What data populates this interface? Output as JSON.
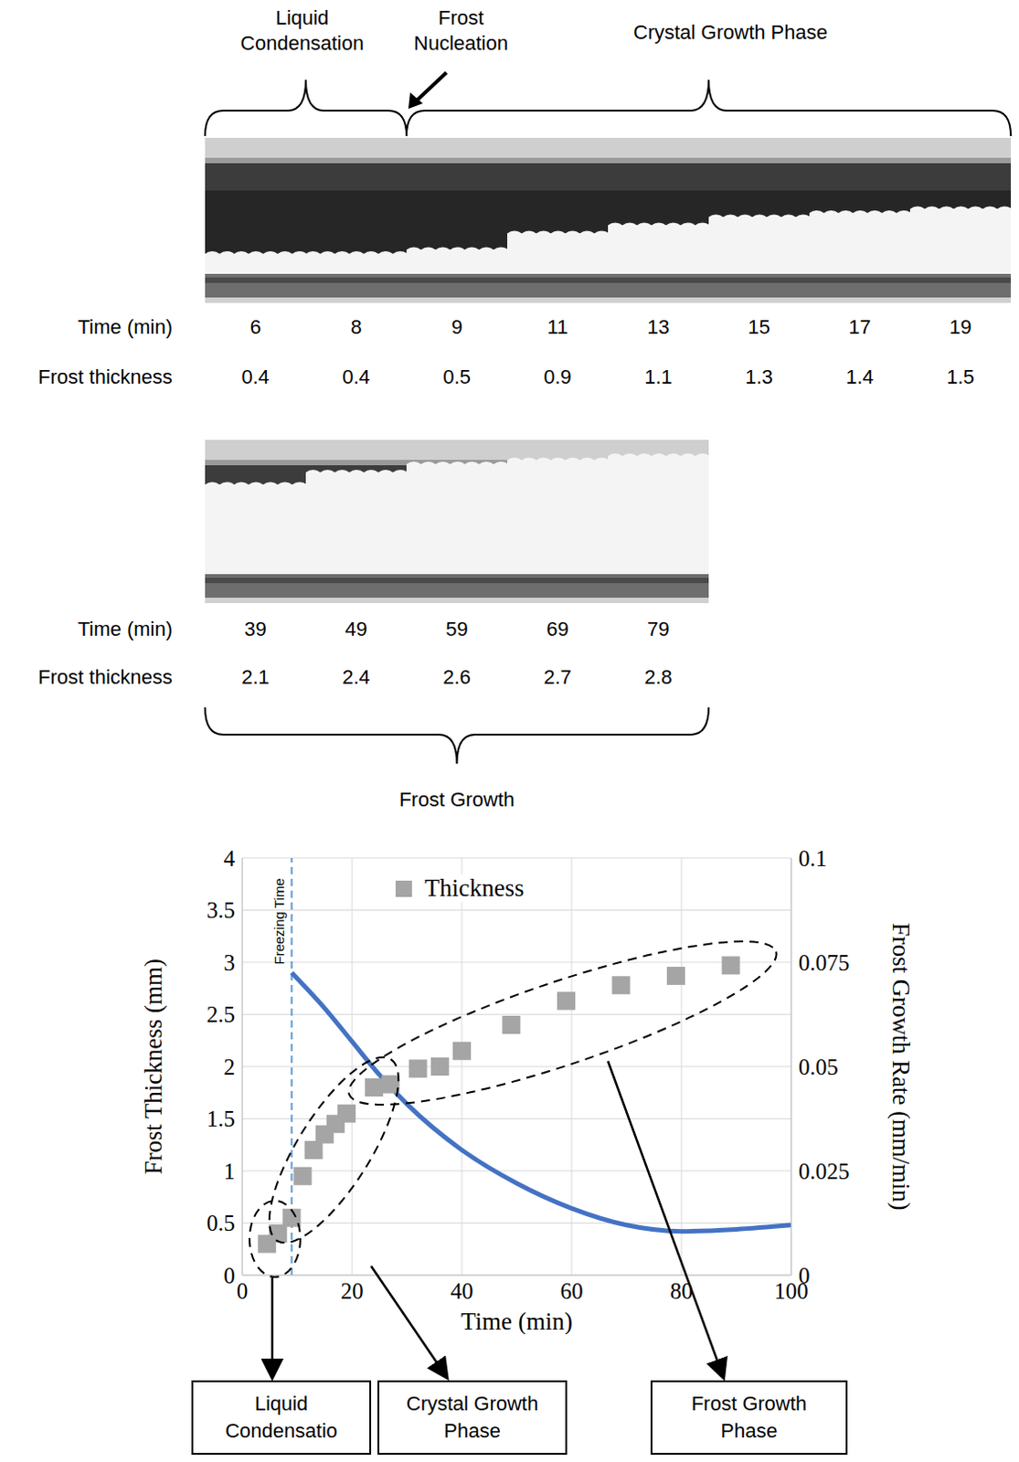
{
  "photo_sequence": {
    "top_labels": [
      "Liquid Condensation",
      "Frost Nucleation",
      "Crystal Growth Phase"
    ],
    "bottom_label": "Frost Growth",
    "row_labels": {
      "time": "Time (min)",
      "thickness": "Frost thickness"
    },
    "rows": [
      {
        "time": [
          6,
          8,
          9,
          11,
          13,
          15,
          17,
          19
        ],
        "thickness": [
          0.4,
          0.4,
          0.5,
          0.9,
          1.1,
          1.3,
          1.4,
          1.5
        ]
      },
      {
        "time": [
          39,
          49,
          59,
          69,
          79
        ],
        "thickness": [
          2.1,
          2.4,
          2.6,
          2.7,
          2.8
        ]
      }
    ]
  },
  "chart_data": {
    "type": "scatter",
    "x_label": "Time (min)",
    "y_label": "Frost Thickness (mm)",
    "y2_label": "Frost Growth Rate (mm/min)",
    "xlim": [
      0,
      100
    ],
    "xticks": [
      0,
      20,
      40,
      60,
      80,
      100
    ],
    "ylim": [
      0,
      4
    ],
    "yticks": [
      0,
      0.5,
      1,
      1.5,
      2,
      2.5,
      3,
      3.5,
      4
    ],
    "y2lim": [
      0,
      0.1
    ],
    "y2ticks": [
      0,
      0.025,
      0.05,
      0.075,
      0.1
    ],
    "grid": true,
    "legend": "top",
    "freezing_time": {
      "label": "Freezing Time",
      "x": 9
    },
    "series": [
      {
        "name": "Thickness",
        "type": "scatter",
        "color": "#a5a5a5",
        "marker": "square",
        "x": [
          4.5,
          6.5,
          9,
          11,
          13,
          15,
          17,
          19,
          24,
          27,
          32,
          36,
          40,
          49,
          59,
          69,
          79,
          89
        ],
        "values": [
          0.3,
          0.4,
          0.55,
          0.95,
          1.2,
          1.35,
          1.45,
          1.55,
          1.8,
          1.83,
          1.98,
          2.0,
          2.15,
          2.4,
          2.63,
          2.78,
          2.87,
          2.97
        ]
      },
      {
        "type": "line",
        "axis": "y2",
        "color": "#4472c4",
        "line_style": "solid",
        "x": [
          9,
          15,
          20,
          25,
          30,
          40,
          50,
          60,
          70,
          80,
          90,
          100
        ],
        "values": [
          0.0725,
          0.064,
          0.056,
          0.048,
          0.041,
          0.03,
          0.022,
          0.016,
          0.012,
          0.0105,
          0.011,
          0.012
        ]
      }
    ],
    "phase_boxes": [
      "Liquid Condensatio",
      "Crystal Growth Phase",
      "Frost Growth Phase"
    ]
  }
}
